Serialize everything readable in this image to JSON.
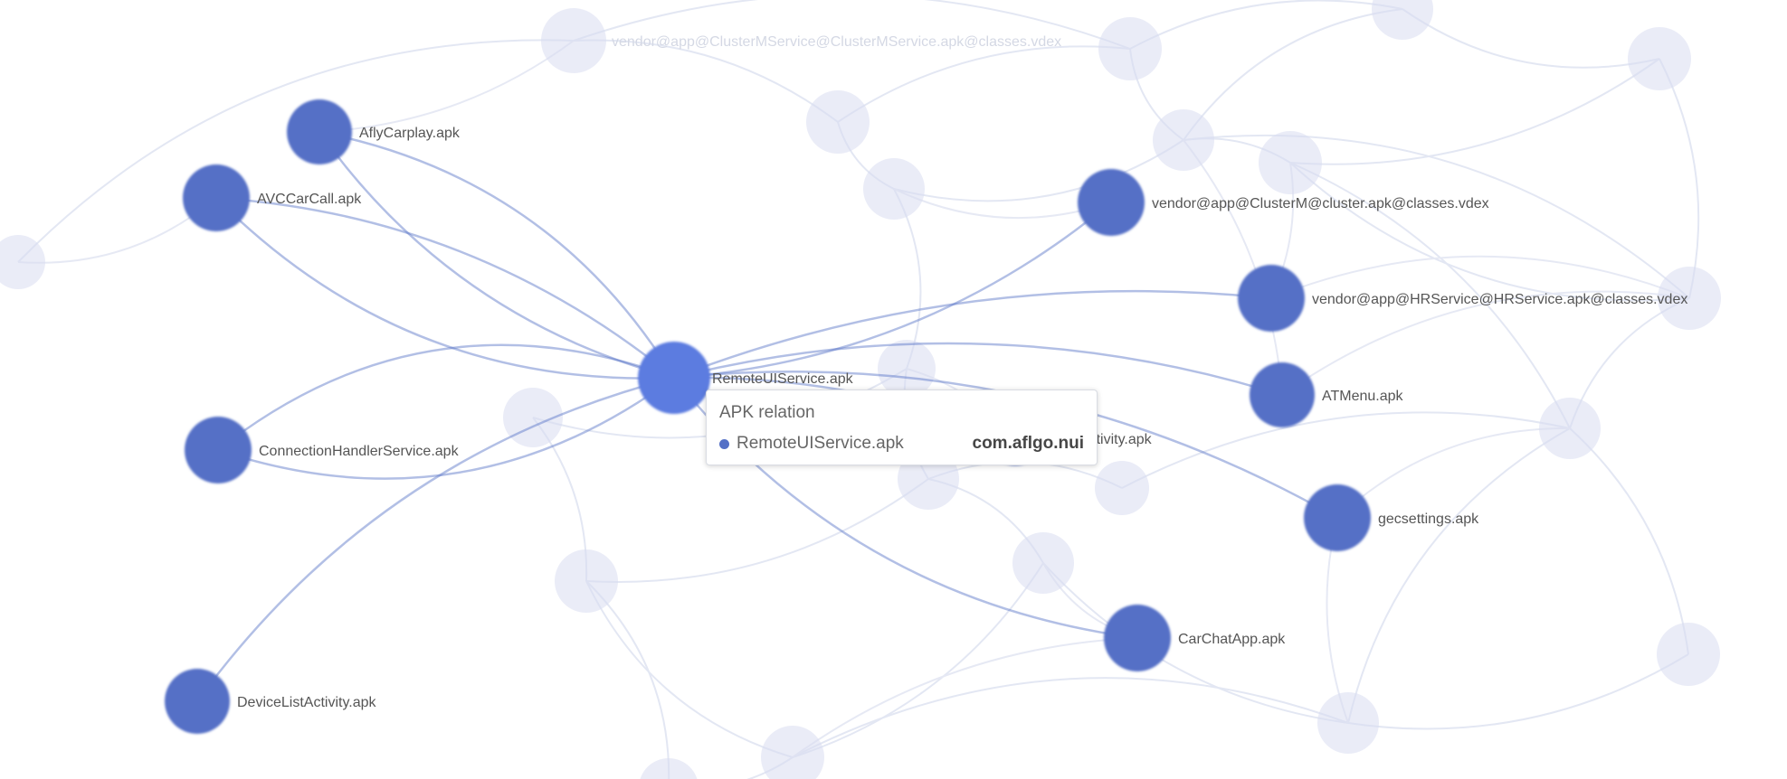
{
  "graph": {
    "accent_color": "#5470c6",
    "faded_color": "#d8ddf0",
    "center": {
      "name": "RemoteUIService.apk"
    },
    "highlighted_nodes": [
      {
        "key": "afly",
        "name": "AflyCarplay.apk"
      },
      {
        "key": "avcar",
        "name": "AVCCarCall.apk"
      },
      {
        "key": "connhandler",
        "name": "ConnectionHandlerService.apk"
      },
      {
        "key": "devicelist",
        "name": "DeviceListActivity.apk"
      },
      {
        "key": "vendor_clusterm",
        "name": "vendor@app@ClusterM@cluster.apk@classes.vdex"
      },
      {
        "key": "vendor_hrservice",
        "name": "vendor@app@HRService@HRService.apk@classes.vdex"
      },
      {
        "key": "atmenu",
        "name": "ATMenu.apk"
      },
      {
        "key": "connectivity",
        "name": "connectivity.apk"
      },
      {
        "key": "gecsettings",
        "name": "gecsettings.apk"
      },
      {
        "key": "carchat",
        "name": "CarChatApp.apk"
      }
    ],
    "background_nodes": [
      {
        "key": "bg1",
        "name": "vendor@app@ClusterMService@ClusterMService.apk@classes.vdex"
      },
      {
        "key": "bg2",
        "name": ""
      },
      {
        "key": "bg3",
        "name": ""
      },
      {
        "key": "bg4",
        "name": ""
      },
      {
        "key": "bg5",
        "name": ""
      },
      {
        "key": "bg6",
        "name": ""
      },
      {
        "key": "bg7",
        "name": ""
      },
      {
        "key": "bg8",
        "name": ""
      },
      {
        "key": "bg9",
        "name": ""
      },
      {
        "key": "bg10",
        "name": ""
      },
      {
        "key": "bg11",
        "name": ""
      },
      {
        "key": "bg12",
        "name": ""
      },
      {
        "key": "bg13",
        "name": ""
      },
      {
        "key": "bg14",
        "name": ""
      },
      {
        "key": "bg15",
        "name": ""
      },
      {
        "key": "bg16",
        "name": ""
      },
      {
        "key": "bg17",
        "name": ""
      },
      {
        "key": "bg18",
        "name": ""
      },
      {
        "key": "bg19",
        "name": ""
      },
      {
        "key": "bg20",
        "name": ""
      },
      {
        "key": "bg21",
        "name": ""
      }
    ]
  },
  "tooltip": {
    "title": "APK relation",
    "series_name": "RemoteUIService.apk",
    "value": "com.aflgo.nui"
  }
}
